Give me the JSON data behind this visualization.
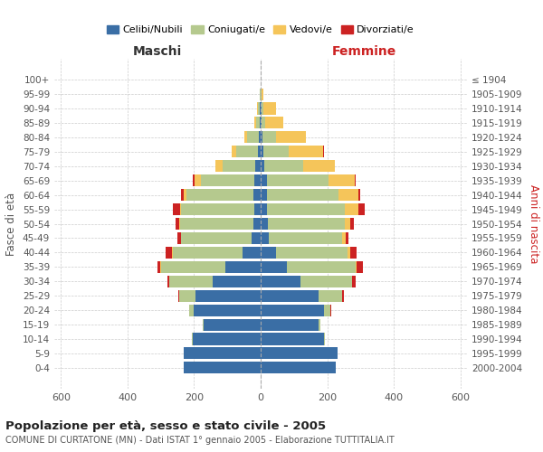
{
  "age_groups": [
    "0-4",
    "5-9",
    "10-14",
    "15-19",
    "20-24",
    "25-29",
    "30-34",
    "35-39",
    "40-44",
    "45-49",
    "50-54",
    "55-59",
    "60-64",
    "65-69",
    "70-74",
    "75-79",
    "80-84",
    "85-89",
    "90-94",
    "95-99",
    "100+"
  ],
  "birth_years": [
    "2000-2004",
    "1995-1999",
    "1990-1994",
    "1985-1989",
    "1980-1984",
    "1975-1979",
    "1970-1974",
    "1965-1969",
    "1960-1964",
    "1955-1959",
    "1950-1954",
    "1945-1949",
    "1940-1944",
    "1935-1939",
    "1930-1934",
    "1925-1929",
    "1920-1924",
    "1915-1919",
    "1910-1914",
    "1905-1909",
    "≤ 1904"
  ],
  "male": {
    "celibi": [
      230,
      230,
      205,
      170,
      200,
      195,
      145,
      105,
      55,
      28,
      22,
      18,
      22,
      20,
      15,
      8,
      5,
      3,
      2,
      1,
      0
    ],
    "coniugati": [
      2,
      2,
      2,
      5,
      15,
      50,
      130,
      195,
      210,
      210,
      220,
      220,
      200,
      160,
      100,
      65,
      35,
      10,
      5,
      2,
      0
    ],
    "vedovi": [
      0,
      0,
      0,
      0,
      0,
      0,
      1,
      1,
      1,
      2,
      3,
      5,
      8,
      18,
      20,
      15,
      10,
      5,
      3,
      1,
      0
    ],
    "divorziati": [
      0,
      0,
      0,
      0,
      1,
      2,
      5,
      10,
      20,
      10,
      10,
      20,
      8,
      5,
      2,
      0,
      0,
      0,
      0,
      0,
      0
    ]
  },
  "female": {
    "nubili": [
      225,
      230,
      190,
      175,
      190,
      175,
      120,
      80,
      45,
      25,
      22,
      18,
      20,
      18,
      12,
      8,
      5,
      3,
      2,
      1,
      0
    ],
    "coniugate": [
      2,
      2,
      2,
      5,
      20,
      70,
      155,
      205,
      215,
      220,
      230,
      235,
      215,
      185,
      115,
      75,
      40,
      10,
      5,
      2,
      0
    ],
    "vedove": [
      0,
      0,
      0,
      0,
      0,
      1,
      1,
      2,
      8,
      10,
      18,
      40,
      60,
      80,
      95,
      105,
      90,
      55,
      40,
      5,
      0
    ],
    "divorziate": [
      0,
      0,
      0,
      0,
      1,
      3,
      10,
      20,
      20,
      10,
      10,
      20,
      5,
      3,
      2,
      1,
      0,
      0,
      0,
      0,
      0
    ]
  },
  "colors": {
    "celibi": "#3a6ea5",
    "coniugati": "#b5c98e",
    "vedovi": "#f5c55a",
    "divorziati": "#cc2222"
  },
  "xlim": 620,
  "title": "Popolazione per età, sesso e stato civile - 2005",
  "subtitle": "COMUNE DI CURTATONE (MN) - Dati ISTAT 1° gennaio 2005 - Elaborazione TUTTITALIA.IT",
  "xlabel_left": "Maschi",
  "xlabel_right": "Femmine",
  "ylabel_left": "Fasce di età",
  "ylabel_right": "Anni di nascita",
  "legend_labels": [
    "Celibi/Nubili",
    "Coniugati/e",
    "Vedovi/e",
    "Divorziati/e"
  ],
  "background_color": "#ffffff",
  "grid_color": "#cccccc"
}
